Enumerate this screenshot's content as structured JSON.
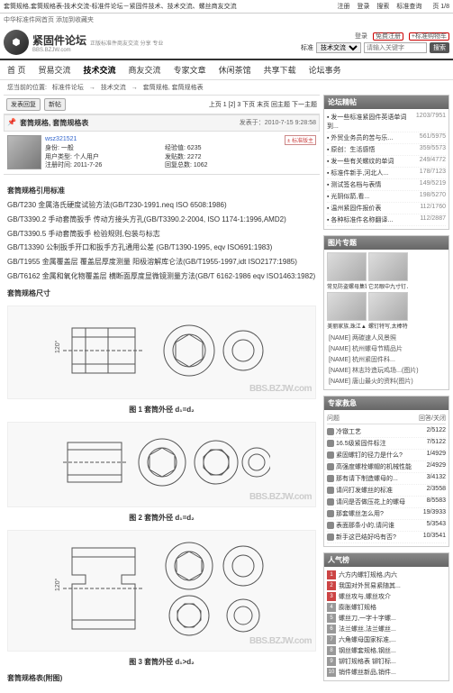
{
  "page": {
    "title": "套筒规格,套筒规格表-技术交流-标准件论坛－紧固件技术、技术交流、螺丝商友交流",
    "pageNum": "页 1/8"
  },
  "topLinks": [
    "注册",
    "登录",
    "搜索",
    "标准查询"
  ],
  "subBar": "中华标准件网首页  添加到收藏夹",
  "logo": {
    "main": "紧固件论坛",
    "sub": "正版标准件商友交流 分享 专业",
    "bbs": "BBS"
  },
  "headerLinks": {
    "login": "登录",
    "reg": "免费注册",
    "cart": "+标准购物车",
    "label": "标准",
    "cat": "技术交流",
    "placeholder": "请输入关键字",
    "btn": "搜索"
  },
  "nav": [
    "首 页",
    "贸易交流",
    "技术交流",
    "商友交流",
    "专家文章",
    "休闲茶馆",
    "共享下载",
    "论坛事务"
  ],
  "navActive": 2,
  "breadcrumb": [
    "您当前的位置:",
    "标准件论坛",
    "→",
    "技术交流",
    "→",
    "套筒规格, 套筒规格表"
  ],
  "toolbar": {
    "reply": "发表回复",
    "newtopic": "新帖",
    "pageInfo": "上页 1 [2] 3 下页  末页  回主题  下一主题"
  },
  "post": {
    "icon": "📌",
    "title": "套筒规格, 套筒规格表",
    "date": "发表于：2010-7-15 9:28:58",
    "user": "wsz321521",
    "meta": {
      "身份": "一般",
      "经验值": "6235",
      "用户类型": "个人用户",
      "发贴数": "2272",
      "注册时间": "2011-7-26",
      "回复总数": "1062"
    },
    "badge": "± 标准版主"
  },
  "body": {
    "h1": "套筒规格引用标准",
    "stds": [
      "GB/T230 金属洛氏硬度试验方法(GB/T230-1991.neq ISO 6508:1986)",
      "GB/T3390.2 手动套筒扳手 传动方接头方孔(GB/T3390.2-2004, ISO 1174-1:1996,AMD2)",
      "GB/T3390.5 手动套筒扳手 检验规则,包装与标志",
      "GB/T13390 公制扳手开口和扳手方孔通用公差 (GB/T1390-1995, eqv ISO691:1983)",
      "GB/T1955 金属覆盖层 覆盖层厚度测量 阳极溶解库仑法(GB/T1955-1997,idt ISO2177:1985)",
      "GB/T6162 金属和氧化物覆盖层 横断面厚度显微镜测量方法(GB/T 6162-1986 eqv ISO1463:1982)"
    ],
    "h2": "套筒规格尺寸",
    "fig1": "图 1  套筒外径 d₁=d₂",
    "fig2": "图 2  套筒外径 d₁=d₂",
    "fig3": "图 3  套筒外径 d₁>d₂",
    "h3": "套筒规格表(附图)"
  },
  "side": {
    "hot": {
      "title": "论坛精帖",
      "items": [
        [
          "发一些标准紧固件英语单词到...",
          "1203/7951"
        ],
        [
          "外贸业务员的苦与乐...",
          "561/5975"
        ],
        [
          "原创：生活感悟",
          "359/5573"
        ],
        [
          "发一些有关螺纹的单词",
          "249/4772"
        ],
        [
          "标准件新手,河北人...",
          "178/7123"
        ],
        [
          "测试签名档与表情",
          "149/5219"
        ],
        [
          "光阴似箭,看...",
          "198/5270"
        ],
        [
          "温州紧固件报价表",
          "112/1760"
        ],
        [
          "各种标准件名称翻译...",
          "112/2887"
        ]
      ]
    },
    "pics": {
      "title": "图片专题",
      "thumbs": [
        {
          "cap": "常见防盗螺母集锦"
        },
        {
          "cap": "它另眼中九寸钉▲"
        },
        {
          "cap": "美丽家族,珠江▲"
        },
        {
          "cap": "螺钉特写,太棒特写"
        }
      ],
      "tags": [
        "[NAME] 两碳速人风景照",
        "[NAME] 杭州螺母节精品片",
        "[NAME] 杭州紧固件科...",
        "[NAME] 林志玲造玩鸡场...(图片)",
        "[NAME] 唐山最火的资料(图片)"
      ]
    },
    "expert": {
      "title": "专家救急",
      "cols": [
        "问题",
        "回答/关闭"
      ],
      "items": [
        [
          "冷镦工艺",
          "2/5122"
        ],
        [
          "16.5级紧固件标注",
          "7/5122"
        ],
        [
          "紧固螺钉的径力是什么?",
          "1/4929"
        ],
        [
          "高强度螺栓螺帽的机械性能",
          "2/4929"
        ],
        [
          "那有请下制造螺母的...",
          "3/4132"
        ],
        [
          "请问打发螺丝的标准",
          "2/3558"
        ],
        [
          "请问是否做压花上的螺母",
          "8/5583"
        ],
        [
          "那套螺丝怎么用?",
          "19/3933"
        ],
        [
          "表面那条小的,请问谁",
          "5/3543"
        ],
        [
          "新手这巴结好吗有否?",
          "10/3541"
        ]
      ]
    },
    "pop": {
      "title": "人气榜",
      "items": [
        "六方内螺钉规格,内六",
        "我国对外贸易紧随其...",
        "螺丝攻与,螺丝攻介",
        "膨胀螺钉规格",
        "螺丝刀,一字十字螺...",
        "法兰螺丝,法兰螺丝...",
        "六角螺母国家标准,...",
        "钢丝螺套规格,钢丝...",
        "铆钉规格表 铆钉标...",
        "销件螺丝新品,销件..."
      ]
    }
  }
}
